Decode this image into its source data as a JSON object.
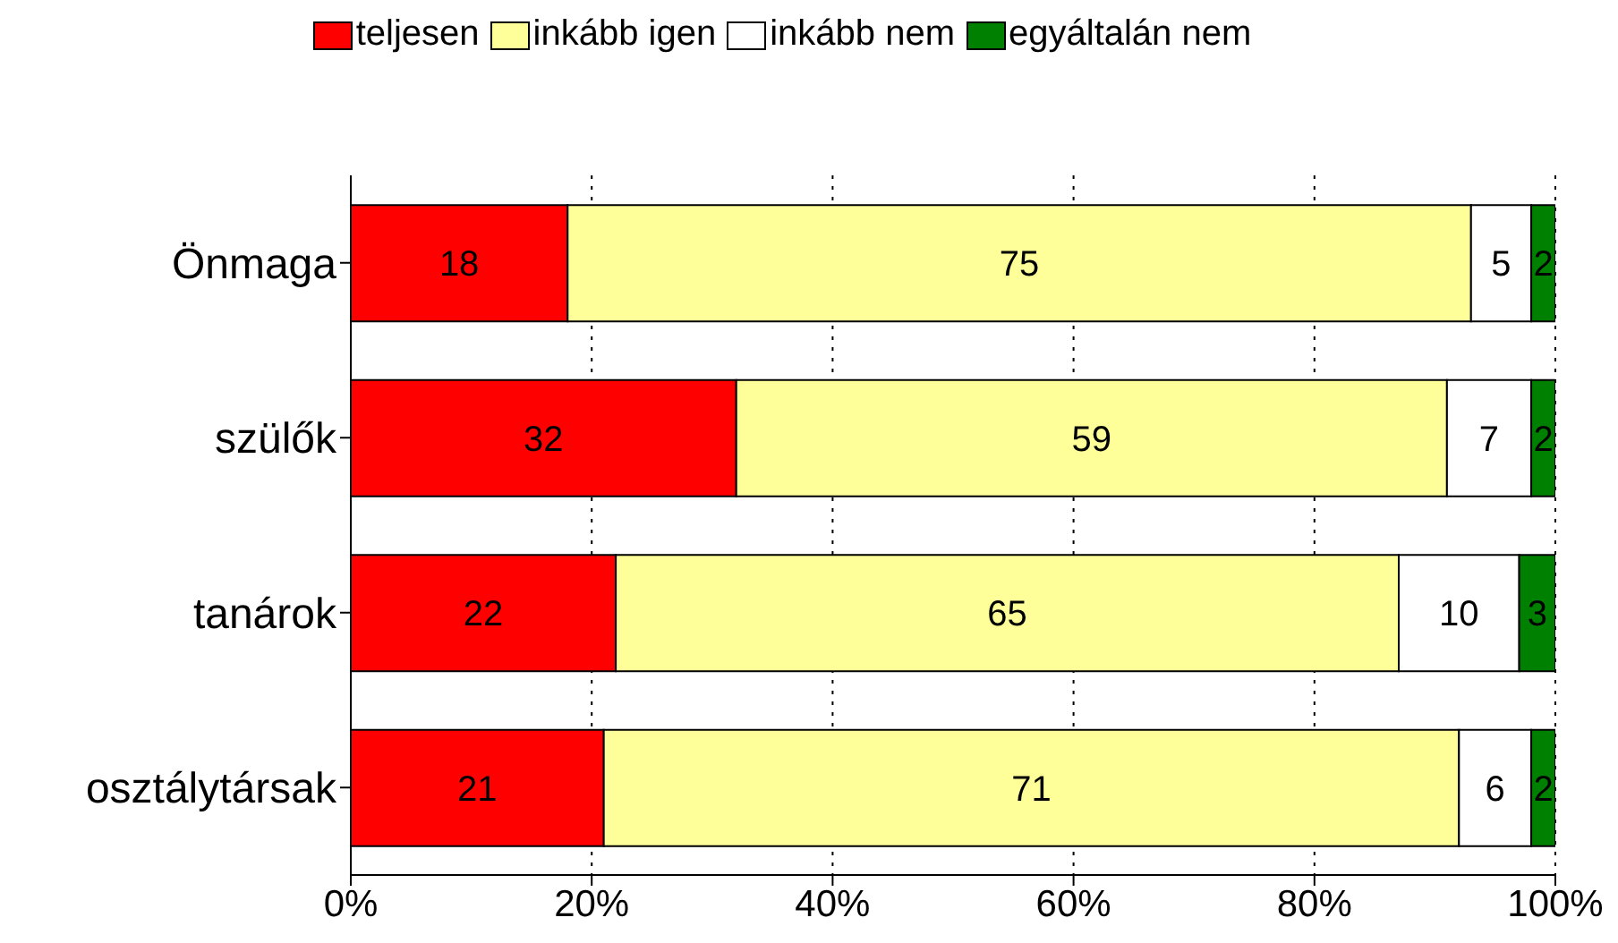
{
  "chart_data": {
    "type": "bar",
    "orientation": "horizontal",
    "stacked": true,
    "categories": [
      "Önmaga",
      "szülők",
      "tanárok",
      "osztálytársak"
    ],
    "series": [
      {
        "name": "teljesen",
        "color": "#ff0000",
        "values": [
          18,
          32,
          22,
          21
        ]
      },
      {
        "name": "inkább igen",
        "color": "#ffff99",
        "values": [
          75,
          59,
          65,
          71
        ]
      },
      {
        "name": "inkább nem",
        "color": "#ffffff",
        "values": [
          5,
          7,
          10,
          6
        ]
      },
      {
        "name": "egyáltalán nem",
        "color": "#008000",
        "values": [
          2,
          2,
          3,
          2
        ]
      }
    ],
    "xlim": [
      0,
      100
    ],
    "xticks": [
      {
        "value": 0,
        "label": "0%"
      },
      {
        "value": 20,
        "label": "20%"
      },
      {
        "value": 40,
        "label": "40%"
      },
      {
        "value": 60,
        "label": "60%"
      },
      {
        "value": 80,
        "label": "80%"
      },
      {
        "value": 100,
        "label": "100%"
      }
    ],
    "grid": "x",
    "legend": "top",
    "data_labels": true
  }
}
